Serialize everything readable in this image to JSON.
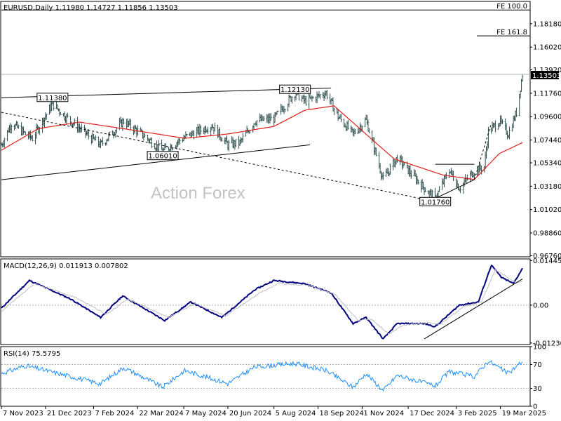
{
  "chart_data": [
    {
      "type": "ohlc",
      "title": "EURUSD,Daily  1.11980 1.14727 1.11856 1.13503",
      "watermark": "Action Forex",
      "price_tag": "1.13503",
      "last_price": 1.13503,
      "y_ticks": [
        "1.18180",
        "1.16020",
        "1.13920",
        "1.11760",
        "1.09600",
        "1.07440",
        "1.05340",
        "1.03180",
        "1.01020",
        "0.98860",
        "0.96760"
      ],
      "x_ticks": [
        "7 Nov 2023",
        "21 Dec 2023",
        "7 Feb 2024",
        "22 Mar 2024",
        "7 May 2024",
        "20 Jun 2024",
        "5 Aug 2024",
        "18 Sep 2024",
        "1 Nov 2024",
        "17 Dec 2024",
        "3 Feb 2025",
        "19 Mar 2025"
      ],
      "ylim": [
        0.9666,
        1.2024
      ],
      "fib_levels": [
        {
          "label": "FE 100.0",
          "value": 1.1945
        },
        {
          "label": "FE 161.8",
          "value": 1.1706
        }
      ],
      "pivot_labels": [
        {
          "label": "1.11380",
          "date": "2023-12-28",
          "value": 1.1138
        },
        {
          "label": "1.06010",
          "date": "2024-04-16",
          "value": 1.0601
        },
        {
          "label": "1.12130",
          "date": "2024-08-26",
          "value": 1.1213
        },
        {
          "label": "1.01760",
          "date": "2025-01-13",
          "value": 1.0176
        }
      ],
      "trend_lines": [
        {
          "style": "solid",
          "points": [
            [
              "2023-11-07",
              1.1135
            ],
            [
              "2024-10-01",
              1.1224
            ]
          ]
        },
        {
          "style": "solid",
          "points": [
            [
              "2023-11-07",
              1.0378
            ],
            [
              "2024-09-10",
              1.07
            ]
          ]
        },
        {
          "style": "dashed",
          "points": [
            [
              "2023-11-07",
              1.1
            ],
            [
              "2025-01-13",
              1.0176
            ]
          ]
        },
        {
          "style": "solid",
          "points": [
            [
              "2025-01-13",
              1.052
            ],
            [
              "2025-02-21",
              1.052
            ]
          ]
        },
        {
          "style": "solid",
          "points": [
            [
              "2025-01-13",
              1.0205
            ],
            [
              "2025-02-21",
              1.0378
            ]
          ]
        },
        {
          "style": "dashed",
          "points": [
            [
              "2025-02-21",
              1.0378
            ],
            [
              "2025-03-10",
              1.09
            ]
          ]
        }
      ],
      "bar_anchors": [
        [
          "2023-11-07",
          1.07
        ],
        [
          "2023-11-17",
          1.09
        ],
        [
          "2023-12-01",
          1.08
        ],
        [
          "2023-12-08",
          1.076
        ],
        [
          "2023-12-28",
          1.108
        ],
        [
          "2024-01-10",
          1.096
        ],
        [
          "2024-02-05",
          1.076
        ],
        [
          "2024-02-14",
          1.07
        ],
        [
          "2024-03-08",
          1.092
        ],
        [
          "2024-04-02",
          1.075
        ],
        [
          "2024-04-16",
          1.064
        ],
        [
          "2024-05-08",
          1.077
        ],
        [
          "2024-06-04",
          1.088
        ],
        [
          "2024-06-20",
          1.07
        ],
        [
          "2024-07-02",
          1.072
        ],
        [
          "2024-07-17",
          1.092
        ],
        [
          "2024-08-05",
          1.094
        ],
        [
          "2024-08-26",
          1.118
        ],
        [
          "2024-09-05",
          1.11
        ],
        [
          "2024-09-26",
          1.118
        ],
        [
          "2024-10-08",
          1.096
        ],
        [
          "2024-10-23",
          1.08
        ],
        [
          "2024-11-05",
          1.093
        ],
        [
          "2024-11-22",
          1.038
        ],
        [
          "2024-12-06",
          1.058
        ],
        [
          "2025-01-02",
          1.03
        ],
        [
          "2025-01-13",
          1.02
        ],
        [
          "2025-01-27",
          1.047
        ],
        [
          "2025-02-06",
          1.03
        ],
        [
          "2025-02-21",
          1.046
        ],
        [
          "2025-03-03",
          1.05
        ],
        [
          "2025-03-07",
          1.082
        ],
        [
          "2025-03-18",
          1.092
        ],
        [
          "2025-03-27",
          1.08
        ],
        [
          "2025-04-04",
          1.1
        ],
        [
          "2025-04-10",
          1.135
        ]
      ],
      "ma_anchors": [
        [
          "2023-11-07",
          1.065
        ],
        [
          "2023-12-14",
          1.085
        ],
        [
          "2024-01-24",
          1.091
        ],
        [
          "2024-03-14",
          1.084
        ],
        [
          "2024-05-08",
          1.076
        ],
        [
          "2024-06-20",
          1.08
        ],
        [
          "2024-08-05",
          1.087
        ],
        [
          "2024-09-05",
          1.102
        ],
        [
          "2024-10-04",
          1.106
        ],
        [
          "2024-11-01",
          1.083
        ],
        [
          "2024-12-03",
          1.057
        ],
        [
          "2025-01-21",
          1.042
        ],
        [
          "2025-02-21",
          1.038
        ],
        [
          "2025-03-18",
          1.062
        ],
        [
          "2025-04-10",
          1.072
        ]
      ]
    },
    {
      "type": "line",
      "title": "MACD(12,26,9) 0.011913 0.007802",
      "y_ticks": [
        "0.014459",
        "0.00",
        "-0.012303"
      ],
      "ylim": [
        -0.0128,
        0.015
      ],
      "series": [
        {
          "name": "MACD",
          "color": "#000080",
          "anchors": [
            [
              "2023-11-07",
              -0.001
            ],
            [
              "2023-12-05",
              0.008
            ],
            [
              "2024-01-15",
              0.002
            ],
            [
              "2024-02-14",
              -0.004
            ],
            [
              "2024-03-07",
              0.003
            ],
            [
              "2024-04-18",
              -0.005
            ],
            [
              "2024-05-14",
              0.001
            ],
            [
              "2024-06-14",
              -0.004
            ],
            [
              "2024-07-17",
              0.005
            ],
            [
              "2024-08-05",
              0.008
            ],
            [
              "2024-09-04",
              0.007
            ],
            [
              "2024-10-01",
              0.004
            ],
            [
              "2024-10-23",
              -0.006
            ],
            [
              "2024-11-05",
              -0.004
            ],
            [
              "2024-11-22",
              -0.011
            ],
            [
              "2024-12-06",
              -0.006
            ],
            [
              "2025-01-02",
              -0.006
            ],
            [
              "2025-01-13",
              -0.007
            ],
            [
              "2025-02-06",
              0.0
            ],
            [
              "2025-02-25",
              0.001
            ],
            [
              "2025-03-10",
              0.013
            ],
            [
              "2025-03-20",
              0.009
            ],
            [
              "2025-04-01",
              0.007
            ],
            [
              "2025-04-10",
              0.0119
            ]
          ]
        },
        {
          "name": "Signal",
          "color": "#c0c0c0",
          "anchors": [
            [
              "2023-11-07",
              -0.002
            ],
            [
              "2023-12-10",
              0.007
            ],
            [
              "2024-01-20",
              0.0025
            ],
            [
              "2024-02-20",
              -0.003
            ],
            [
              "2024-03-12",
              0.002
            ],
            [
              "2024-04-22",
              -0.004
            ],
            [
              "2024-05-18",
              0.0005
            ],
            [
              "2024-06-18",
              -0.0035
            ],
            [
              "2024-07-22",
              0.004
            ],
            [
              "2024-08-10",
              0.007
            ],
            [
              "2024-09-08",
              0.0065
            ],
            [
              "2024-10-05",
              0.0035
            ],
            [
              "2024-10-28",
              -0.005
            ],
            [
              "2024-11-10",
              -0.0045
            ],
            [
              "2024-11-28",
              -0.0095
            ],
            [
              "2024-12-12",
              -0.0065
            ],
            [
              "2025-01-06",
              -0.0058
            ],
            [
              "2025-01-18",
              -0.0063
            ],
            [
              "2025-02-10",
              -0.0005
            ],
            [
              "2025-02-28",
              0.001
            ],
            [
              "2025-03-14",
              0.0115
            ],
            [
              "2025-03-24",
              0.0095
            ],
            [
              "2025-04-04",
              0.0072
            ],
            [
              "2025-04-10",
              0.0078
            ]
          ]
        }
      ],
      "trend_line": [
        [
          "2025-01-02",
          -0.011
        ],
        [
          "2025-04-10",
          0.0085
        ]
      ]
    },
    {
      "type": "line",
      "title": "RSI(14) 75.5795",
      "y_ticks": [
        "100",
        "70",
        "30",
        "0"
      ],
      "ylim": [
        0,
        100
      ],
      "reference_lines": [
        70,
        30
      ],
      "series": [
        {
          "name": "RSI",
          "color": "#1e90ff",
          "anchors": [
            [
              "2023-11-07",
              55
            ],
            [
              "2023-12-01",
              68
            ],
            [
              "2024-01-10",
              52
            ],
            [
              "2024-02-14",
              38
            ],
            [
              "2024-03-08",
              65
            ],
            [
              "2024-04-16",
              32
            ],
            [
              "2024-05-08",
              60
            ],
            [
              "2024-06-20",
              38
            ],
            [
              "2024-07-17",
              66
            ],
            [
              "2024-08-26",
              72
            ],
            [
              "2024-09-26",
              60
            ],
            [
              "2024-10-23",
              32
            ],
            [
              "2024-11-05",
              55
            ],
            [
              "2024-11-22",
              26
            ],
            [
              "2024-12-06",
              52
            ],
            [
              "2025-01-13",
              34
            ],
            [
              "2025-01-27",
              58
            ],
            [
              "2025-02-21",
              50
            ],
            [
              "2025-03-07",
              76
            ],
            [
              "2025-03-27",
              55
            ],
            [
              "2025-04-10",
              75.58
            ]
          ]
        }
      ]
    }
  ]
}
